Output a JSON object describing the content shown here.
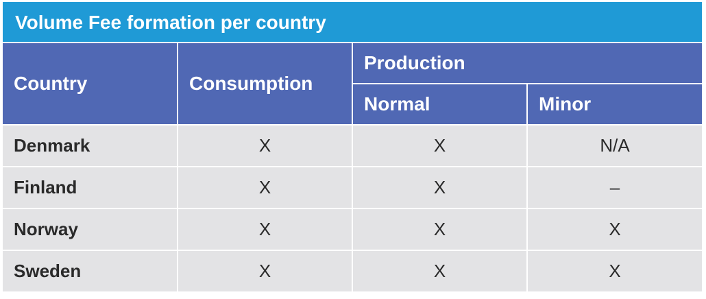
{
  "title": "Volume Fee formation per country",
  "header": {
    "country": "Country",
    "consumption": "Consumption",
    "production": "Production",
    "normal": "Normal",
    "minor": "Minor"
  },
  "rows": [
    {
      "country": "Denmark",
      "consumption": "X",
      "normal": "X",
      "minor": "N/A"
    },
    {
      "country": "Finland",
      "consumption": "X",
      "normal": "X",
      "minor": "–"
    },
    {
      "country": "Norway",
      "consumption": "X",
      "normal": "X",
      "minor": "X"
    },
    {
      "country": "Sweden",
      "consumption": "X",
      "normal": "X",
      "minor": "X"
    }
  ],
  "colors": {
    "title_bg": "#1f9ad6",
    "header_bg": "#5068b4",
    "cell_bg": "#e3e3e5"
  }
}
